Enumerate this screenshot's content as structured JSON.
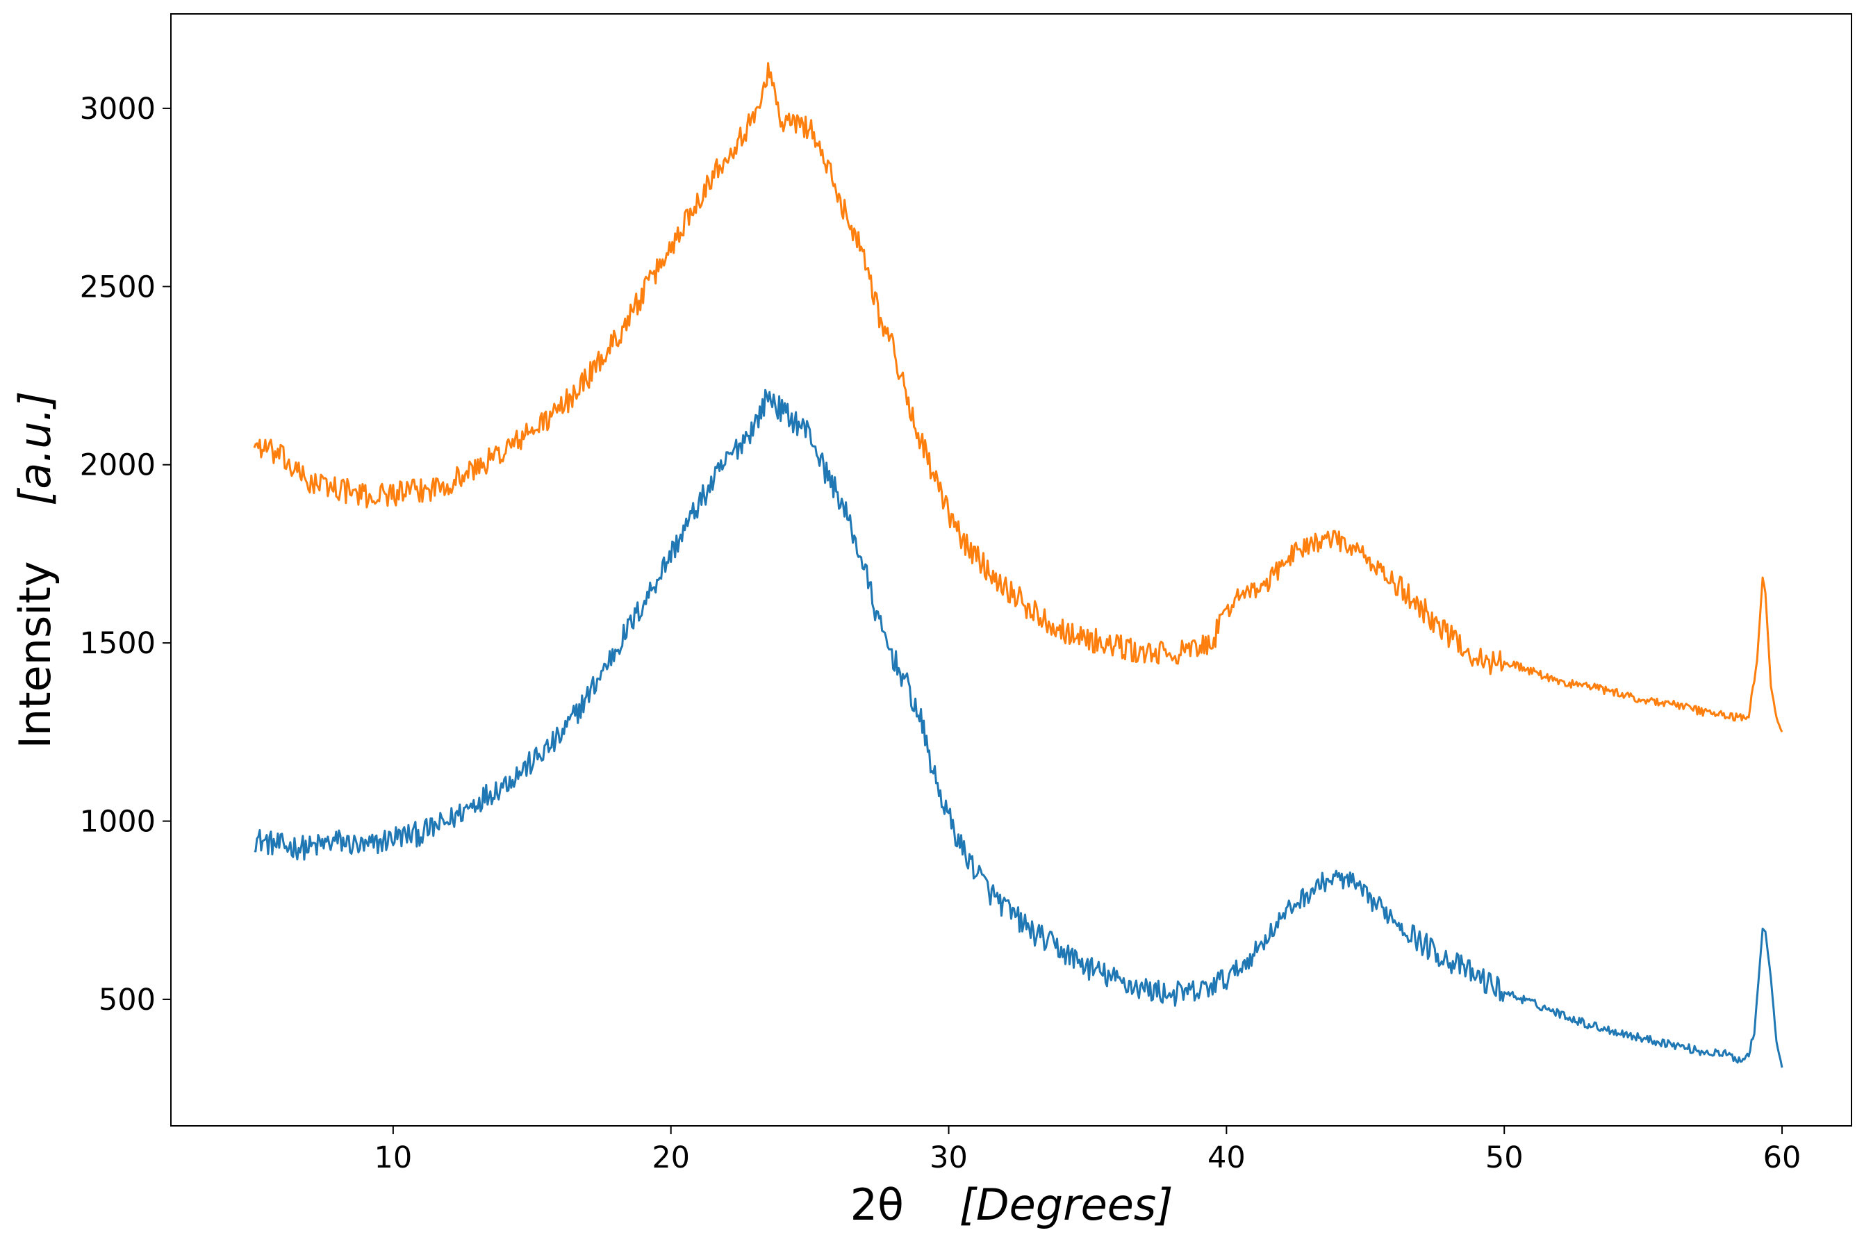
{
  "chart_data": {
    "type": "line",
    "title": "",
    "xlabel_main": "2θ",
    "xlabel_unit": "[Degrees]",
    "ylabel_main": "Intensity",
    "ylabel_unit": "[a.u.]",
    "xlim": [
      2.0,
      62.5
    ],
    "ylim": [
      145,
      3265
    ],
    "xticks": [
      10,
      20,
      30,
      40,
      50,
      60
    ],
    "yticks": [
      500,
      1000,
      1500,
      2000,
      2500,
      3000
    ],
    "grid": false,
    "legend": "none",
    "series": [
      {
        "color": "#1f77b4",
        "points": [
          [
            5,
            950
          ],
          [
            6,
            930
          ],
          [
            7,
            925
          ],
          [
            8,
            945
          ],
          [
            9,
            925
          ],
          [
            10,
            955
          ],
          [
            11,
            965
          ],
          [
            12,
            1000
          ],
          [
            13,
            1055
          ],
          [
            14,
            1105
          ],
          [
            15,
            1165
          ],
          [
            16,
            1235
          ],
          [
            17,
            1350
          ],
          [
            18,
            1480
          ],
          [
            19,
            1610
          ],
          [
            20,
            1750
          ],
          [
            21,
            1890
          ],
          [
            22,
            2010
          ],
          [
            23,
            2110
          ],
          [
            23.5,
            2195
          ],
          [
            24,
            2150
          ],
          [
            25,
            2090
          ],
          [
            25.5,
            1990
          ],
          [
            26,
            1920
          ],
          [
            26.5,
            1820
          ],
          [
            27,
            1700
          ],
          [
            27.5,
            1550
          ],
          [
            28,
            1460
          ],
          [
            28.5,
            1380
          ],
          [
            29,
            1280
          ],
          [
            29.5,
            1120
          ],
          [
            30,
            1010
          ],
          [
            30.5,
            920
          ],
          [
            31,
            860
          ],
          [
            31.5,
            800
          ],
          [
            32,
            760
          ],
          [
            33,
            690
          ],
          [
            34,
            640
          ],
          [
            35,
            590
          ],
          [
            36,
            555
          ],
          [
            37,
            530
          ],
          [
            38,
            515
          ],
          [
            39,
            520
          ],
          [
            40,
            560
          ],
          [
            40.5,
            590
          ],
          [
            41,
            630
          ],
          [
            41.5,
            680
          ],
          [
            42,
            730
          ],
          [
            42.5,
            770
          ],
          [
            43,
            800
          ],
          [
            43.5,
            830
          ],
          [
            44,
            840
          ],
          [
            44.5,
            830
          ],
          [
            45,
            790
          ],
          [
            46,
            730
          ],
          [
            47,
            660
          ],
          [
            48,
            610
          ],
          [
            49,
            565
          ],
          [
            50,
            520
          ],
          [
            51,
            490
          ],
          [
            52,
            460
          ],
          [
            53,
            430
          ],
          [
            54,
            410
          ],
          [
            55,
            390
          ],
          [
            56,
            375
          ],
          [
            57,
            355
          ],
          [
            58,
            345
          ],
          [
            58.5,
            330
          ],
          [
            58.8,
            345
          ],
          [
            59,
            410
          ],
          [
            59.2,
            600
          ],
          [
            59.3,
            700
          ],
          [
            59.4,
            690
          ],
          [
            59.6,
            560
          ],
          [
            59.8,
            380
          ],
          [
            60,
            310
          ]
        ]
      },
      {
        "color": "#ff7f0e",
        "points": [
          [
            5,
            2060
          ],
          [
            5.5,
            2040
          ],
          [
            6,
            2020
          ],
          [
            6.5,
            1980
          ],
          [
            7,
            1950
          ],
          [
            8,
            1935
          ],
          [
            9,
            1910
          ],
          [
            10,
            1920
          ],
          [
            11,
            1925
          ],
          [
            12,
            1950
          ],
          [
            13,
            1990
          ],
          [
            14,
            2040
          ],
          [
            15,
            2095
          ],
          [
            16,
            2155
          ],
          [
            17,
            2245
          ],
          [
            18,
            2350
          ],
          [
            19,
            2480
          ],
          [
            20,
            2610
          ],
          [
            21,
            2750
          ],
          [
            22,
            2870
          ],
          [
            23,
            2970
          ],
          [
            23.5,
            3110
          ],
          [
            24,
            2960
          ],
          [
            25,
            2950
          ],
          [
            25.5,
            2860
          ],
          [
            26,
            2760
          ],
          [
            27,
            2580
          ],
          [
            27.5,
            2420
          ],
          [
            28,
            2330
          ],
          [
            28.5,
            2180
          ],
          [
            29,
            2070
          ],
          [
            29.5,
            1960
          ],
          [
            30,
            1860
          ],
          [
            30.5,
            1790
          ],
          [
            31,
            1740
          ],
          [
            32,
            1660
          ],
          [
            33,
            1590
          ],
          [
            34,
            1540
          ],
          [
            35,
            1510
          ],
          [
            36,
            1490
          ],
          [
            37,
            1470
          ],
          [
            38,
            1470
          ],
          [
            39,
            1480
          ],
          [
            39.5,
            1510
          ],
          [
            40,
            1580
          ],
          [
            40.5,
            1650
          ],
          [
            41,
            1640
          ],
          [
            41.5,
            1670
          ],
          [
            42,
            1720
          ],
          [
            42.5,
            1760
          ],
          [
            43,
            1780
          ],
          [
            44,
            1790
          ],
          [
            45,
            1740
          ],
          [
            46,
            1670
          ],
          [
            47,
            1600
          ],
          [
            48,
            1520
          ],
          [
            48.5,
            1490
          ],
          [
            49,
            1460
          ],
          [
            49.5,
            1440
          ],
          [
            50,
            1450
          ],
          [
            51,
            1420
          ],
          [
            52,
            1390
          ],
          [
            53,
            1380
          ],
          [
            54,
            1360
          ],
          [
            55,
            1340
          ],
          [
            56,
            1330
          ],
          [
            57,
            1310
          ],
          [
            58,
            1295
          ],
          [
            58.8,
            1290
          ],
          [
            59.1,
            1450
          ],
          [
            59.3,
            1685
          ],
          [
            59.4,
            1640
          ],
          [
            59.6,
            1380
          ],
          [
            59.8,
            1290
          ],
          [
            60,
            1250
          ]
        ]
      }
    ]
  }
}
